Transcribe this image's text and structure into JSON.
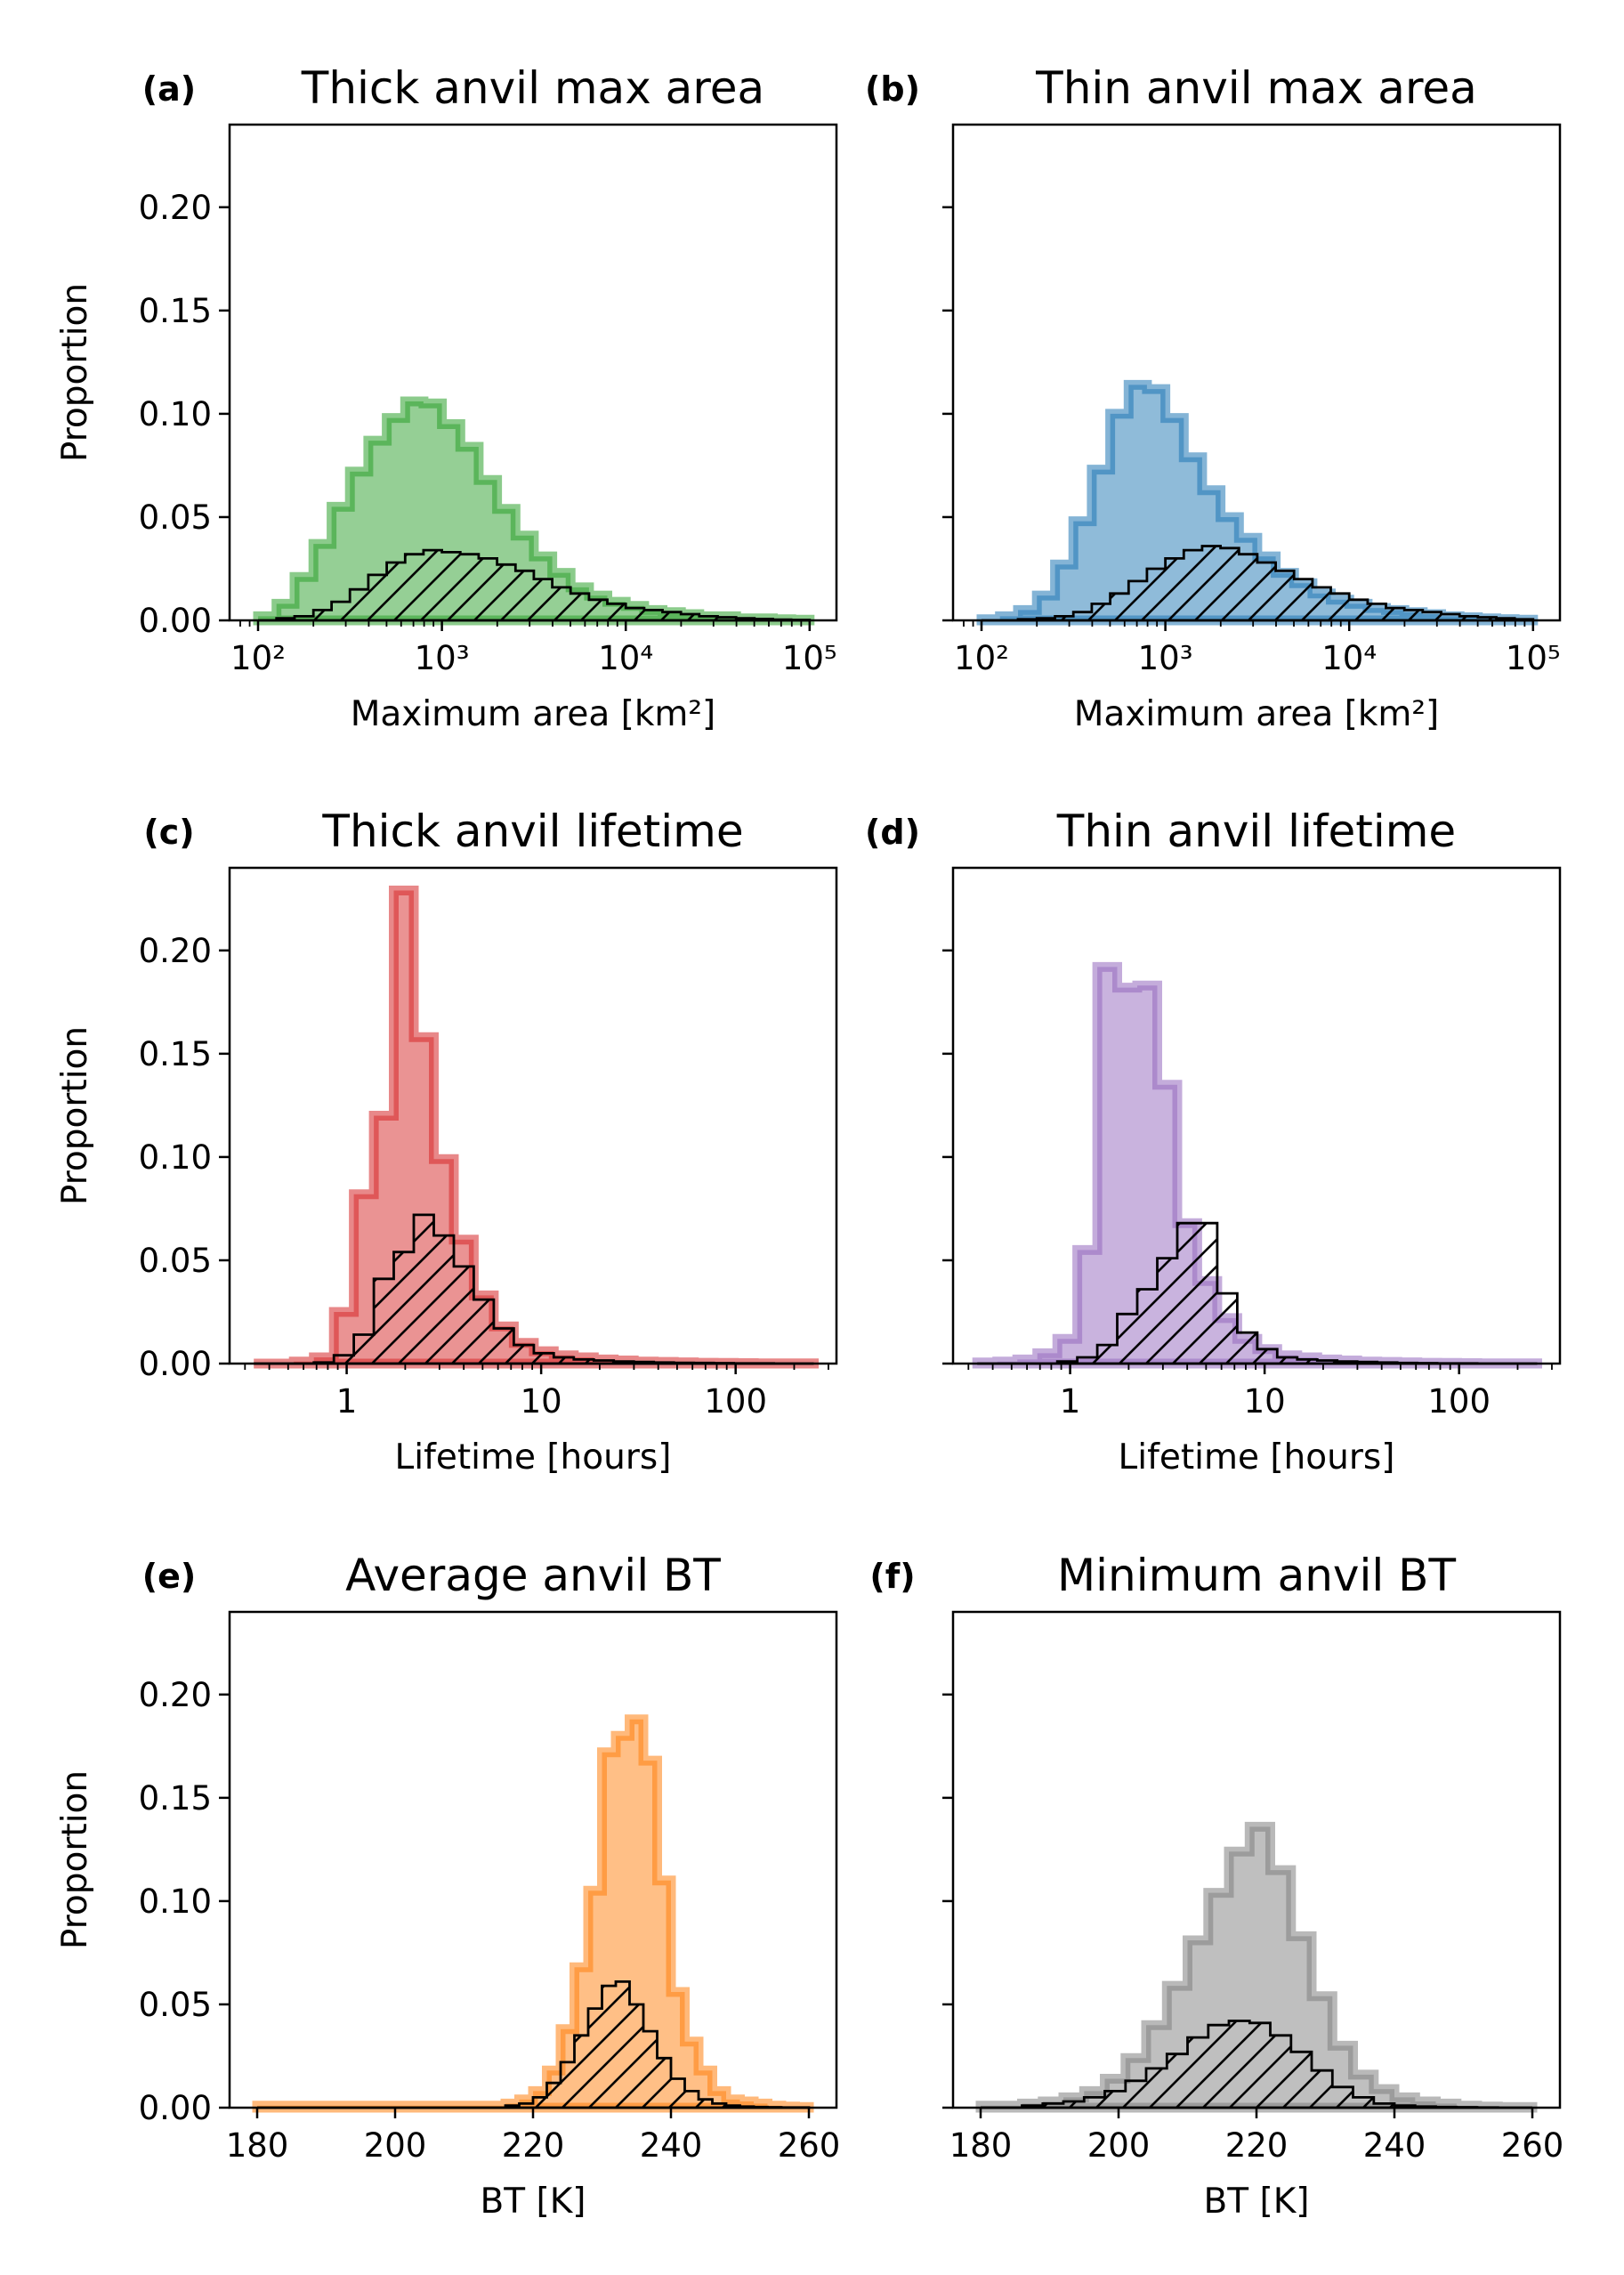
{
  "chart_data": [
    {
      "type": "histogram",
      "panel": "(a)",
      "title": "Thick anvil max area",
      "xlabel": "Maximum area [km²]",
      "ylabel": "Proportion",
      "xscale": "log",
      "x_tick_labels": [
        "10²",
        "10³",
        "10⁴",
        "10⁵"
      ],
      "y_tick_labels": [
        "0.00",
        "0.05",
        "0.10",
        "0.15",
        "0.20"
      ],
      "xlim": [
        70,
        140000
      ],
      "ylim": [
        0,
        0.24
      ],
      "grid": false,
      "color": "#2ca02c",
      "bin_edges": [
        100,
        126,
        158,
        200,
        251,
        316,
        398,
        501,
        631,
        794,
        1000,
        1259,
        1585,
        1995,
        2512,
        3162,
        3981,
        5012,
        6310,
        7943,
        10000,
        12589,
        15849,
        19953,
        25119,
        31623,
        39811,
        50119,
        63096,
        79433,
        100000
      ],
      "series": [
        {
          "style": "filled",
          "values": [
            0.002,
            0.008,
            0.021,
            0.037,
            0.055,
            0.072,
            0.087,
            0.098,
            0.106,
            0.105,
            0.095,
            0.084,
            0.068,
            0.054,
            0.041,
            0.031,
            0.023,
            0.016,
            0.012,
            0.009,
            0.007,
            0.005,
            0.004,
            0.003,
            0.002,
            0.002,
            0.001,
            0.001,
            0.0005,
            0.0003
          ]
        },
        {
          "style": "hatched",
          "values": [
            0.0,
            0.001,
            0.002,
            0.005,
            0.009,
            0.015,
            0.022,
            0.028,
            0.032,
            0.034,
            0.033,
            0.032,
            0.03,
            0.027,
            0.024,
            0.02,
            0.016,
            0.013,
            0.01,
            0.008,
            0.006,
            0.005,
            0.004,
            0.003,
            0.002,
            0.0015,
            0.001,
            0.0007,
            0.0004,
            0.0002
          ]
        }
      ]
    },
    {
      "type": "histogram",
      "panel": "(b)",
      "title": "Thin anvil max area",
      "xlabel": "Maximum area [km²]",
      "ylabel": "",
      "xscale": "log",
      "x_tick_labels": [
        "10²",
        "10³",
        "10⁴",
        "10⁵"
      ],
      "y_tick_labels": [
        "",
        "",
        "",
        "",
        ""
      ],
      "xlim": [
        70,
        140000
      ],
      "ylim": [
        0,
        0.24
      ],
      "grid": false,
      "color": "#1f77b4",
      "bin_edges": [
        100,
        126,
        158,
        200,
        251,
        316,
        398,
        501,
        631,
        794,
        1000,
        1259,
        1585,
        1995,
        2512,
        3162,
        3981,
        5012,
        6310,
        7943,
        10000,
        12589,
        15849,
        19953,
        25119,
        31623,
        39811,
        50119,
        63096,
        79433,
        100000
      ],
      "series": [
        {
          "style": "filled",
          "values": [
            0.0005,
            0.002,
            0.005,
            0.012,
            0.027,
            0.048,
            0.073,
            0.1,
            0.114,
            0.112,
            0.098,
            0.079,
            0.063,
            0.05,
            0.04,
            0.031,
            0.023,
            0.018,
            0.013,
            0.01,
            0.008,
            0.006,
            0.005,
            0.004,
            0.003,
            0.002,
            0.0015,
            0.001,
            0.0006,
            0.0003
          ]
        },
        {
          "style": "hatched",
          "values": [
            0.0,
            0.0,
            0.0005,
            0.001,
            0.002,
            0.004,
            0.008,
            0.013,
            0.019,
            0.025,
            0.03,
            0.034,
            0.036,
            0.035,
            0.032,
            0.028,
            0.024,
            0.02,
            0.016,
            0.013,
            0.01,
            0.008,
            0.006,
            0.005,
            0.004,
            0.003,
            0.002,
            0.0015,
            0.001,
            0.0005
          ]
        }
      ]
    },
    {
      "type": "histogram",
      "panel": "(c)",
      "title": "Thick anvil lifetime",
      "xlabel": "Lifetime [hours]",
      "ylabel": "Proportion",
      "xscale": "log",
      "x_tick_labels": [
        "1",
        "10",
        "100"
      ],
      "y_tick_labels": [
        "0.00",
        "0.05",
        "0.10",
        "0.15",
        "0.20"
      ],
      "xlim": [
        0.25,
        330
      ],
      "ylim": [
        0,
        0.24
      ],
      "grid": false,
      "color": "#d62728",
      "bin_edges": [
        0.333,
        0.422,
        0.535,
        0.678,
        0.859,
        1.088,
        1.379,
        1.747,
        2.214,
        2.806,
        3.555,
        4.505,
        5.709,
        7.234,
        9.167,
        11.61,
        14.72,
        18.65,
        23.63,
        29.95,
        37.95,
        48.08,
        60.93,
        77.21,
        97.83,
        124.0,
        157.1,
        199.1,
        252.3
      ],
      "series": [
        {
          "style": "filled",
          "values": [
            0.0,
            0.0,
            0.001,
            0.003,
            0.025,
            0.082,
            0.12,
            0.229,
            0.158,
            0.099,
            0.06,
            0.033,
            0.018,
            0.01,
            0.006,
            0.004,
            0.003,
            0.002,
            0.0015,
            0.001,
            0.0008,
            0.0006,
            0.0004,
            0.0003,
            0.0002,
            0.0001,
            0.0001,
            0.0001
          ]
        },
        {
          "style": "hatched",
          "values": [
            0.0,
            0.0,
            0.0,
            0.0005,
            0.004,
            0.014,
            0.041,
            0.054,
            0.072,
            0.062,
            0.047,
            0.031,
            0.017,
            0.009,
            0.005,
            0.003,
            0.002,
            0.0015,
            0.001,
            0.0008,
            0.0005,
            0.0004,
            0.0003,
            0.0002,
            0.0001,
            0.0001,
            0.0,
            0.0
          ]
        }
      ]
    },
    {
      "type": "histogram",
      "panel": "(d)",
      "title": "Thin anvil lifetime",
      "xlabel": "Lifetime [hours]",
      "ylabel": "",
      "xscale": "log",
      "x_tick_labels": [
        "1",
        "10",
        "100"
      ],
      "y_tick_labels": [
        "",
        "",
        "",
        "",
        ""
      ],
      "xlim": [
        0.25,
        330
      ],
      "ylim": [
        0,
        0.24
      ],
      "grid": false,
      "color": "#9467bd",
      "bin_edges": [
        0.333,
        0.422,
        0.535,
        0.678,
        0.859,
        1.088,
        1.379,
        1.747,
        2.214,
        2.806,
        3.555,
        4.505,
        5.709,
        7.234,
        9.167,
        11.61,
        14.72,
        18.65,
        23.63,
        29.95,
        37.95,
        48.08,
        60.93,
        77.21,
        97.83,
        124.0,
        157.1,
        199.1,
        252.3
      ],
      "series": [
        {
          "style": "filled",
          "values": [
            0.0005,
            0.001,
            0.002,
            0.005,
            0.012,
            0.055,
            0.192,
            0.182,
            0.183,
            0.135,
            0.068,
            0.04,
            0.022,
            0.012,
            0.007,
            0.004,
            0.003,
            0.002,
            0.0015,
            0.001,
            0.0008,
            0.0006,
            0.0004,
            0.0003,
            0.0002,
            0.0001,
            0.0001,
            0.0001
          ]
        },
        {
          "style": "hatched",
          "values": [
            0.0,
            0.0,
            0.0,
            0.0,
            0.001,
            0.003,
            0.009,
            0.024,
            0.036,
            0.051,
            0.068,
            0.068,
            0.034,
            0.015,
            0.007,
            0.003,
            0.002,
            0.0015,
            0.001,
            0.0008,
            0.0005,
            0.0003,
            0.0002,
            0.0001,
            0.0001,
            0.0,
            0.0,
            0.0
          ]
        }
      ]
    },
    {
      "type": "histogram",
      "panel": "(e)",
      "title": "Average anvil BT",
      "xlabel": "BT [K]",
      "ylabel": "Proportion",
      "xscale": "linear",
      "x_ticks": [
        180,
        200,
        220,
        240,
        260
      ],
      "x_tick_labels": [
        "180",
        "200",
        "220",
        "240",
        "260"
      ],
      "y_tick_labels": [
        "0.00",
        "0.05",
        "0.10",
        "0.15",
        "0.20"
      ],
      "xlim": [
        176,
        264
      ],
      "ylim": [
        0,
        0.24
      ],
      "grid": false,
      "color": "#ff7f0e",
      "bin_edges": [
        180,
        212,
        214,
        216,
        218,
        220,
        222,
        224,
        226,
        228,
        230,
        232,
        234,
        236,
        238,
        240,
        242,
        244,
        246,
        248,
        250,
        252,
        254,
        256,
        258,
        260
      ],
      "series": [
        {
          "style": "filled",
          "values": [
            0.001,
            0.001,
            0.001,
            0.002,
            0.004,
            0.008,
            0.018,
            0.038,
            0.068,
            0.105,
            0.172,
            0.18,
            0.188,
            0.168,
            0.11,
            0.056,
            0.032,
            0.018,
            0.008,
            0.004,
            0.003,
            0.002,
            0.001,
            0.0005,
            0.0003
          ]
        },
        {
          "style": "hatched",
          "values": [
            0.0,
            0.0,
            0.0,
            0.001,
            0.002,
            0.005,
            0.012,
            0.022,
            0.035,
            0.048,
            0.059,
            0.061,
            0.05,
            0.037,
            0.024,
            0.014,
            0.008,
            0.004,
            0.002,
            0.001,
            0.0005,
            0.0003,
            0.0002,
            0.0001,
            0.0001
          ]
        }
      ]
    },
    {
      "type": "histogram",
      "panel": "(f)",
      "title": "Minimum anvil BT",
      "xlabel": "BT [K]",
      "ylabel": "",
      "xscale": "linear",
      "x_ticks": [
        180,
        200,
        220,
        240,
        260
      ],
      "x_tick_labels": [
        "180",
        "200",
        "220",
        "240",
        "260"
      ],
      "y_tick_labels": [
        "",
        "",
        "",
        "",
        ""
      ],
      "xlim": [
        176,
        264
      ],
      "ylim": [
        0,
        0.24
      ],
      "grid": false,
      "color": "#7f7f7f",
      "bin_edges": [
        180,
        186,
        189,
        192,
        195,
        198,
        201,
        204,
        207,
        210,
        213,
        216,
        219,
        222,
        225,
        228,
        231,
        234,
        237,
        240,
        243,
        246,
        249,
        252,
        255,
        260
      ],
      "series": [
        {
          "style": "filled",
          "values": [
            0.001,
            0.002,
            0.003,
            0.005,
            0.008,
            0.014,
            0.024,
            0.04,
            0.059,
            0.081,
            0.104,
            0.124,
            0.136,
            0.115,
            0.083,
            0.054,
            0.03,
            0.016,
            0.009,
            0.005,
            0.003,
            0.002,
            0.001,
            0.0005,
            0.0003
          ]
        },
        {
          "style": "hatched",
          "values": [
            0.0,
            0.001,
            0.002,
            0.003,
            0.005,
            0.008,
            0.013,
            0.019,
            0.026,
            0.034,
            0.04,
            0.042,
            0.041,
            0.035,
            0.027,
            0.018,
            0.01,
            0.005,
            0.002,
            0.001,
            0.0005,
            0.0003,
            0.0002,
            0.0001,
            0.0
          ]
        }
      ]
    }
  ]
}
